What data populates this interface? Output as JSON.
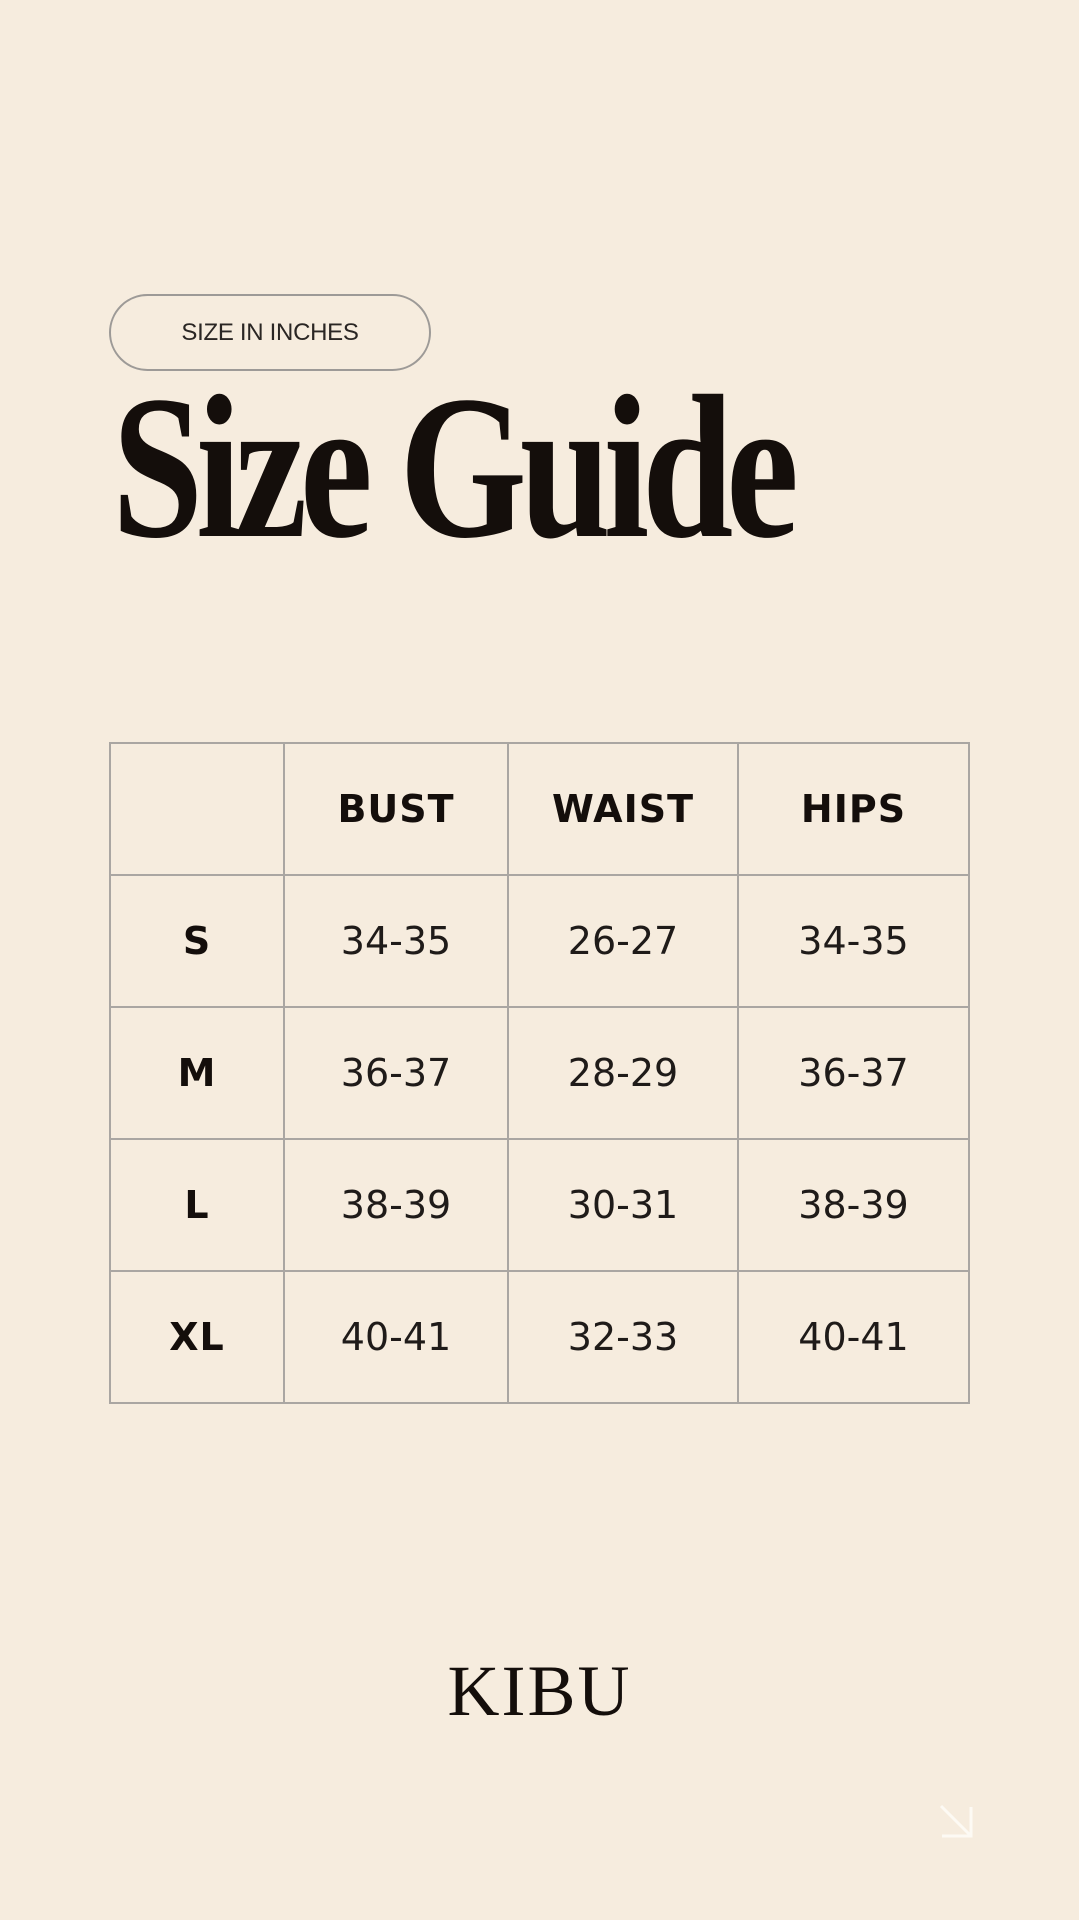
{
  "badge": "SIZE IN INCHES",
  "title": "Size Guide",
  "table": {
    "headers": [
      "",
      "BUST",
      "WAIST",
      "HIPS"
    ],
    "rows": [
      [
        "S",
        "34-35",
        "26-27",
        "34-35"
      ],
      [
        "M",
        "36-37",
        "28-29",
        "36-37"
      ],
      [
        "L",
        "38-39",
        "30-31",
        "38-39"
      ],
      [
        "XL",
        "40-41",
        "32-33",
        "40-41"
      ]
    ]
  },
  "logo": "KIBU",
  "icons": {
    "corner": "arrow-down-right-icon"
  },
  "colors": {
    "background": "#f6ecde",
    "text": "#140e0b",
    "border": "#aaa6a2"
  }
}
